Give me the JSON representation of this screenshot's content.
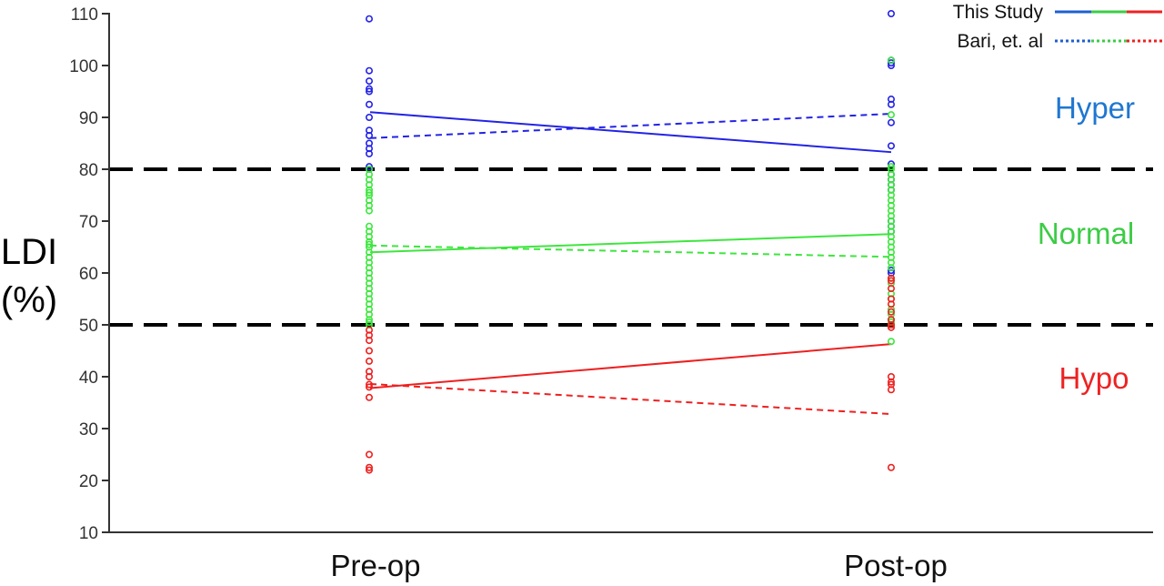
{
  "chart_data": {
    "type": "scatter",
    "ylabel_line1": "LDI",
    "ylabel_line2": "(%)",
    "ylim": [
      10,
      110
    ],
    "yticks": [
      10,
      20,
      30,
      40,
      50,
      60,
      70,
      80,
      90,
      100,
      110
    ],
    "categories": [
      "Pre-op",
      "Post-op"
    ],
    "thresholds": [
      80,
      50
    ],
    "regions": [
      {
        "label": "Hyper",
        "color": "#1f77d0",
        "y": 89.5
      },
      {
        "label": "Normal",
        "color": "#3ccc46",
        "y": 65.5
      },
      {
        "label": "Hypo",
        "color": "#ee2222",
        "y": 39.5
      }
    ],
    "legend": [
      {
        "label": "This Study",
        "style": "solid"
      },
      {
        "label": "Bari, et. al",
        "style": "dotted"
      }
    ],
    "groups": [
      {
        "color": "#2323e6",
        "this_study": [
          91,
          83.3
        ],
        "bari": [
          86,
          90.7
        ],
        "points": {
          "Pre-op": [
            109,
            99,
            97,
            95.5,
            95,
            92.5,
            90,
            87.5,
            86.5,
            85,
            84,
            83,
            80.5,
            80
          ],
          "Post-op": [
            110,
            101,
            100.5,
            100,
            93.5,
            92.5,
            89,
            84.5,
            81,
            79,
            78,
            77,
            76,
            70,
            69,
            68,
            60.5,
            60
          ]
        }
      },
      {
        "color": "#3ee63e",
        "this_study": [
          64,
          67.5
        ],
        "bari": [
          65.3,
          63.1
        ],
        "points": {
          "Pre-op": [
            80,
            79,
            78,
            77,
            76,
            75.5,
            75,
            74,
            73,
            72,
            69,
            68,
            67,
            66,
            65.5,
            65,
            64,
            63,
            62,
            61,
            60,
            59,
            58,
            57,
            56,
            55,
            54,
            53,
            52,
            51,
            50.5,
            50
          ],
          "Post-op": [
            101,
            90.5,
            80.5,
            80,
            79,
            78,
            77,
            76,
            75,
            74,
            73,
            72,
            71,
            70,
            69,
            68,
            67,
            66,
            65,
            64,
            63,
            62,
            61,
            59,
            58,
            56,
            55,
            53,
            52,
            51,
            50.5,
            50,
            46.8
          ]
        }
      },
      {
        "color": "#ee2020",
        "this_study": [
          37.8,
          46.3
        ],
        "bari": [
          38.6,
          32.8
        ],
        "points": {
          "Pre-op": [
            49,
            48,
            47,
            45,
            43,
            41,
            40,
            38.5,
            38,
            36,
            25,
            22.5,
            22
          ],
          "Post-op": [
            59,
            58.5,
            57,
            55,
            54,
            52.5,
            51,
            50,
            49.5,
            40,
            39,
            38.5,
            37.5,
            22.5
          ]
        }
      }
    ]
  }
}
